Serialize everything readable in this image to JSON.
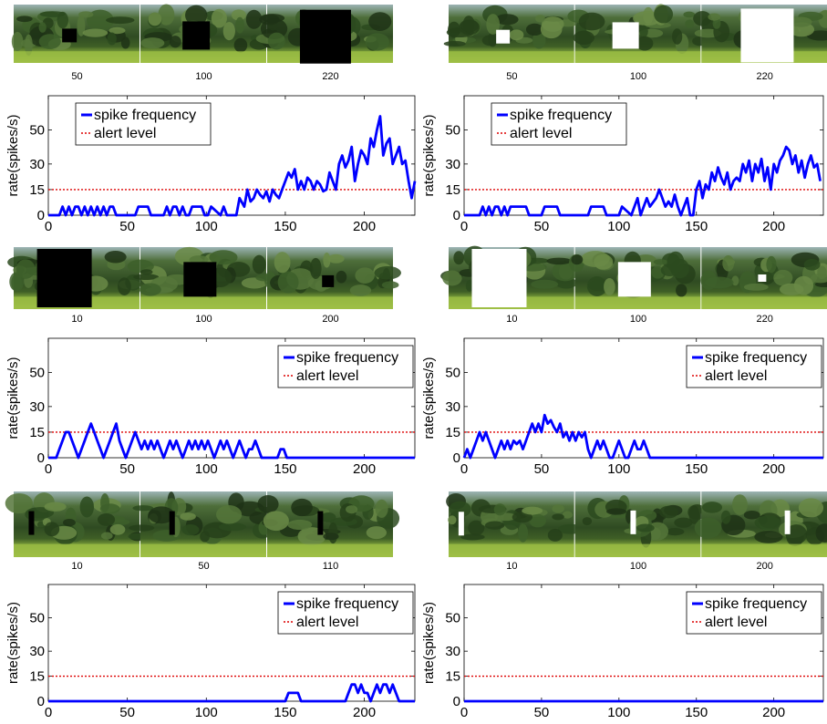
{
  "figure": {
    "legend": {
      "spike": "spike frequency",
      "alert": "alert level"
    },
    "ylabel": "rate(spikes/s)",
    "colors": {
      "series": "#0000ff",
      "alert": "#dd0000",
      "axes": "#000000"
    }
  },
  "chart_data": [
    {
      "type": "line",
      "panel": "top-left",
      "stimulus": {
        "kind": "black square, expanding",
        "frame_labels": [
          "50",
          "100",
          "220"
        ]
      },
      "xlim": [
        0,
        232
      ],
      "ylim": [
        0,
        70
      ],
      "xticks": [
        0,
        50,
        100,
        150,
        200
      ],
      "yticks": [
        0,
        15,
        30,
        50
      ],
      "legend_position": "top-left",
      "alert_level": 15,
      "series": [
        {
          "name": "spike frequency",
          "x": [
            0,
            7,
            9,
            11,
            13,
            15,
            17,
            19,
            21,
            23,
            25,
            27,
            29,
            31,
            33,
            35,
            37,
            39,
            41,
            43,
            45,
            47,
            55,
            57,
            63,
            65,
            73,
            75,
            77,
            79,
            81,
            83,
            85,
            87,
            89,
            91,
            97,
            99,
            101,
            103,
            109,
            111,
            113,
            115,
            119,
            121,
            124,
            126,
            128,
            130,
            132,
            134,
            136,
            138,
            140,
            142,
            144,
            146,
            148,
            150,
            152,
            154,
            156,
            158,
            160,
            162,
            164,
            166,
            168,
            170,
            172,
            174,
            176,
            178,
            180,
            182,
            184,
            186,
            188,
            190,
            192,
            194,
            196,
            198,
            200,
            202,
            204,
            206,
            208,
            210,
            212,
            214,
            216,
            218,
            220,
            222,
            224,
            226,
            228,
            230,
            232
          ],
          "y": [
            0,
            0,
            5,
            0,
            5,
            0,
            5,
            5,
            0,
            5,
            0,
            5,
            0,
            5,
            0,
            5,
            0,
            5,
            5,
            0,
            0,
            0,
            0,
            5,
            5,
            0,
            0,
            5,
            0,
            5,
            5,
            0,
            5,
            0,
            0,
            5,
            5,
            0,
            0,
            5,
            0,
            5,
            0,
            0,
            0,
            10,
            5,
            15,
            8,
            10,
            15,
            12,
            10,
            14,
            8,
            15,
            12,
            10,
            15,
            20,
            25,
            22,
            27,
            15,
            20,
            15,
            22,
            20,
            15,
            20,
            18,
            14,
            15,
            25,
            20,
            15,
            30,
            35,
            28,
            32,
            40,
            20,
            30,
            38,
            35,
            30,
            45,
            40,
            50,
            58,
            35,
            42,
            45,
            30,
            35,
            40,
            30,
            32,
            20,
            10,
            20
          ]
        }
      ]
    },
    {
      "type": "line",
      "panel": "top-right",
      "stimulus": {
        "kind": "white square, expanding",
        "frame_labels": [
          "50",
          "100",
          "220"
        ]
      },
      "xlim": [
        0,
        232
      ],
      "ylim": [
        0,
        70
      ],
      "xticks": [
        0,
        50,
        100,
        150,
        200
      ],
      "yticks": [
        0,
        15,
        30,
        50
      ],
      "legend_position": "top-left",
      "alert_level": 15,
      "series": [
        {
          "name": "spike frequency",
          "x": [
            0,
            10,
            12,
            14,
            16,
            18,
            20,
            22,
            24,
            26,
            28,
            30,
            32,
            40,
            42,
            50,
            52,
            60,
            62,
            80,
            82,
            90,
            92,
            100,
            102,
            108,
            110,
            112,
            114,
            116,
            118,
            120,
            124,
            126,
            128,
            130,
            132,
            134,
            136,
            138,
            140,
            142,
            144,
            146,
            148,
            150,
            152,
            154,
            156,
            158,
            160,
            162,
            164,
            166,
            168,
            170,
            172,
            174,
            176,
            178,
            180,
            182,
            184,
            186,
            188,
            190,
            192,
            194,
            196,
            198,
            200,
            202,
            204,
            206,
            208,
            210,
            212,
            214,
            216,
            218,
            220,
            222,
            224,
            226,
            228,
            230
          ],
          "y": [
            0,
            0,
            5,
            0,
            5,
            0,
            5,
            5,
            0,
            5,
            0,
            5,
            5,
            5,
            0,
            0,
            5,
            5,
            0,
            0,
            5,
            5,
            0,
            0,
            5,
            0,
            5,
            10,
            0,
            5,
            10,
            5,
            10,
            15,
            10,
            5,
            8,
            5,
            12,
            5,
            0,
            5,
            10,
            0,
            -1,
            15,
            20,
            10,
            18,
            15,
            25,
            20,
            28,
            22,
            18,
            25,
            15,
            20,
            22,
            20,
            30,
            25,
            32,
            20,
            30,
            25,
            33,
            20,
            28,
            15,
            30,
            25,
            32,
            35,
            40,
            38,
            30,
            35,
            25,
            32,
            22,
            30,
            35,
            28,
            30,
            20
          ]
        }
      ]
    },
    {
      "type": "line",
      "panel": "middle-left",
      "stimulus": {
        "kind": "black square, receding",
        "frame_labels": [
          "10",
          "100",
          "200"
        ]
      },
      "xlim": [
        0,
        232
      ],
      "ylim": [
        0,
        70
      ],
      "xticks": [
        0,
        50,
        100,
        150,
        200
      ],
      "yticks": [
        0,
        15,
        30,
        50
      ],
      "legend_position": "top-right",
      "alert_level": 15,
      "series": [
        {
          "name": "spike frequency",
          "x": [
            0,
            5,
            7,
            9,
            11,
            13,
            15,
            17,
            19,
            21,
            23,
            25,
            27,
            29,
            31,
            33,
            35,
            37,
            39,
            41,
            43,
            45,
            47,
            49,
            51,
            53,
            55,
            57,
            59,
            61,
            63,
            65,
            67,
            69,
            71,
            73,
            75,
            77,
            79,
            81,
            83,
            85,
            87,
            89,
            91,
            93,
            95,
            97,
            99,
            101,
            103,
            105,
            107,
            109,
            111,
            113,
            115,
            117,
            119,
            121,
            123,
            125,
            127,
            129,
            131,
            133,
            135,
            137,
            145,
            147,
            149,
            151,
            153,
            232
          ],
          "y": [
            0,
            0,
            5,
            10,
            15,
            15,
            10,
            5,
            0,
            5,
            10,
            15,
            20,
            15,
            10,
            5,
            0,
            5,
            10,
            15,
            20,
            10,
            5,
            0,
            5,
            10,
            15,
            10,
            5,
            10,
            5,
            10,
            5,
            10,
            5,
            0,
            5,
            10,
            5,
            10,
            5,
            0,
            5,
            10,
            5,
            10,
            5,
            10,
            5,
            10,
            5,
            0,
            5,
            10,
            5,
            10,
            5,
            0,
            5,
            10,
            5,
            0,
            5,
            5,
            10,
            5,
            0,
            0,
            0,
            5,
            5,
            0,
            0,
            0
          ]
        }
      ]
    },
    {
      "type": "line",
      "panel": "middle-right",
      "stimulus": {
        "kind": "white square, receding",
        "frame_labels": [
          "10",
          "100",
          "220"
        ]
      },
      "xlim": [
        0,
        232
      ],
      "ylim": [
        0,
        70
      ],
      "xticks": [
        0,
        50,
        100,
        150,
        200
      ],
      "yticks": [
        0,
        15,
        30,
        50
      ],
      "legend_position": "top-right",
      "alert_level": 15,
      "series": [
        {
          "name": "spike frequency",
          "x": [
            0,
            2,
            4,
            6,
            8,
            10,
            12,
            14,
            16,
            18,
            20,
            22,
            24,
            26,
            28,
            30,
            32,
            34,
            36,
            38,
            40,
            42,
            44,
            46,
            48,
            50,
            52,
            54,
            56,
            58,
            60,
            62,
            64,
            66,
            68,
            70,
            72,
            74,
            76,
            78,
            80,
            82,
            84,
            86,
            88,
            90,
            92,
            94,
            96,
            98,
            100,
            102,
            104,
            106,
            108,
            110,
            112,
            114,
            116,
            118,
            120,
            122,
            232
          ],
          "y": [
            0,
            5,
            0,
            5,
            10,
            15,
            10,
            15,
            10,
            5,
            0,
            5,
            10,
            5,
            10,
            5,
            10,
            8,
            10,
            5,
            10,
            15,
            20,
            15,
            20,
            15,
            25,
            20,
            22,
            18,
            15,
            20,
            12,
            15,
            10,
            15,
            10,
            15,
            12,
            15,
            5,
            0,
            5,
            10,
            5,
            10,
            5,
            0,
            0,
            5,
            10,
            5,
            0,
            0,
            5,
            10,
            5,
            5,
            10,
            5,
            0,
            0,
            0
          ]
        }
      ]
    },
    {
      "type": "line",
      "panel": "bottom-left",
      "stimulus": {
        "kind": "black bar, translating",
        "frame_labels": [
          "10",
          "50",
          "110"
        ]
      },
      "xlim": [
        0,
        232
      ],
      "ylim": [
        0,
        70
      ],
      "xticks": [
        0,
        50,
        100,
        150,
        200
      ],
      "yticks": [
        0,
        15,
        30,
        50
      ],
      "legend_position": "top-right",
      "alert_level": 15,
      "series": [
        {
          "name": "spike frequency",
          "x": [
            0,
            150,
            152,
            154,
            156,
            158,
            160,
            188,
            190,
            192,
            194,
            196,
            198,
            200,
            202,
            204,
            206,
            208,
            210,
            212,
            214,
            216,
            218,
            220,
            222,
            224,
            232
          ],
          "y": [
            0,
            0,
            5,
            5,
            5,
            5,
            0,
            0,
            5,
            10,
            10,
            5,
            10,
            5,
            5,
            0,
            5,
            10,
            5,
            10,
            10,
            5,
            10,
            5,
            0,
            0,
            0
          ]
        }
      ]
    },
    {
      "type": "line",
      "panel": "bottom-right",
      "stimulus": {
        "kind": "white bar, translating",
        "frame_labels": [
          "10",
          "100",
          "200"
        ]
      },
      "xlim": [
        0,
        232
      ],
      "ylim": [
        0,
        70
      ],
      "xticks": [
        0,
        50,
        100,
        150,
        200
      ],
      "yticks": [
        0,
        15,
        30,
        50
      ],
      "legend_position": "top-right",
      "alert_level": 15,
      "series": [
        {
          "name": "spike frequency",
          "x": [
            0,
            232
          ],
          "y": [
            0,
            0
          ]
        }
      ]
    }
  ]
}
